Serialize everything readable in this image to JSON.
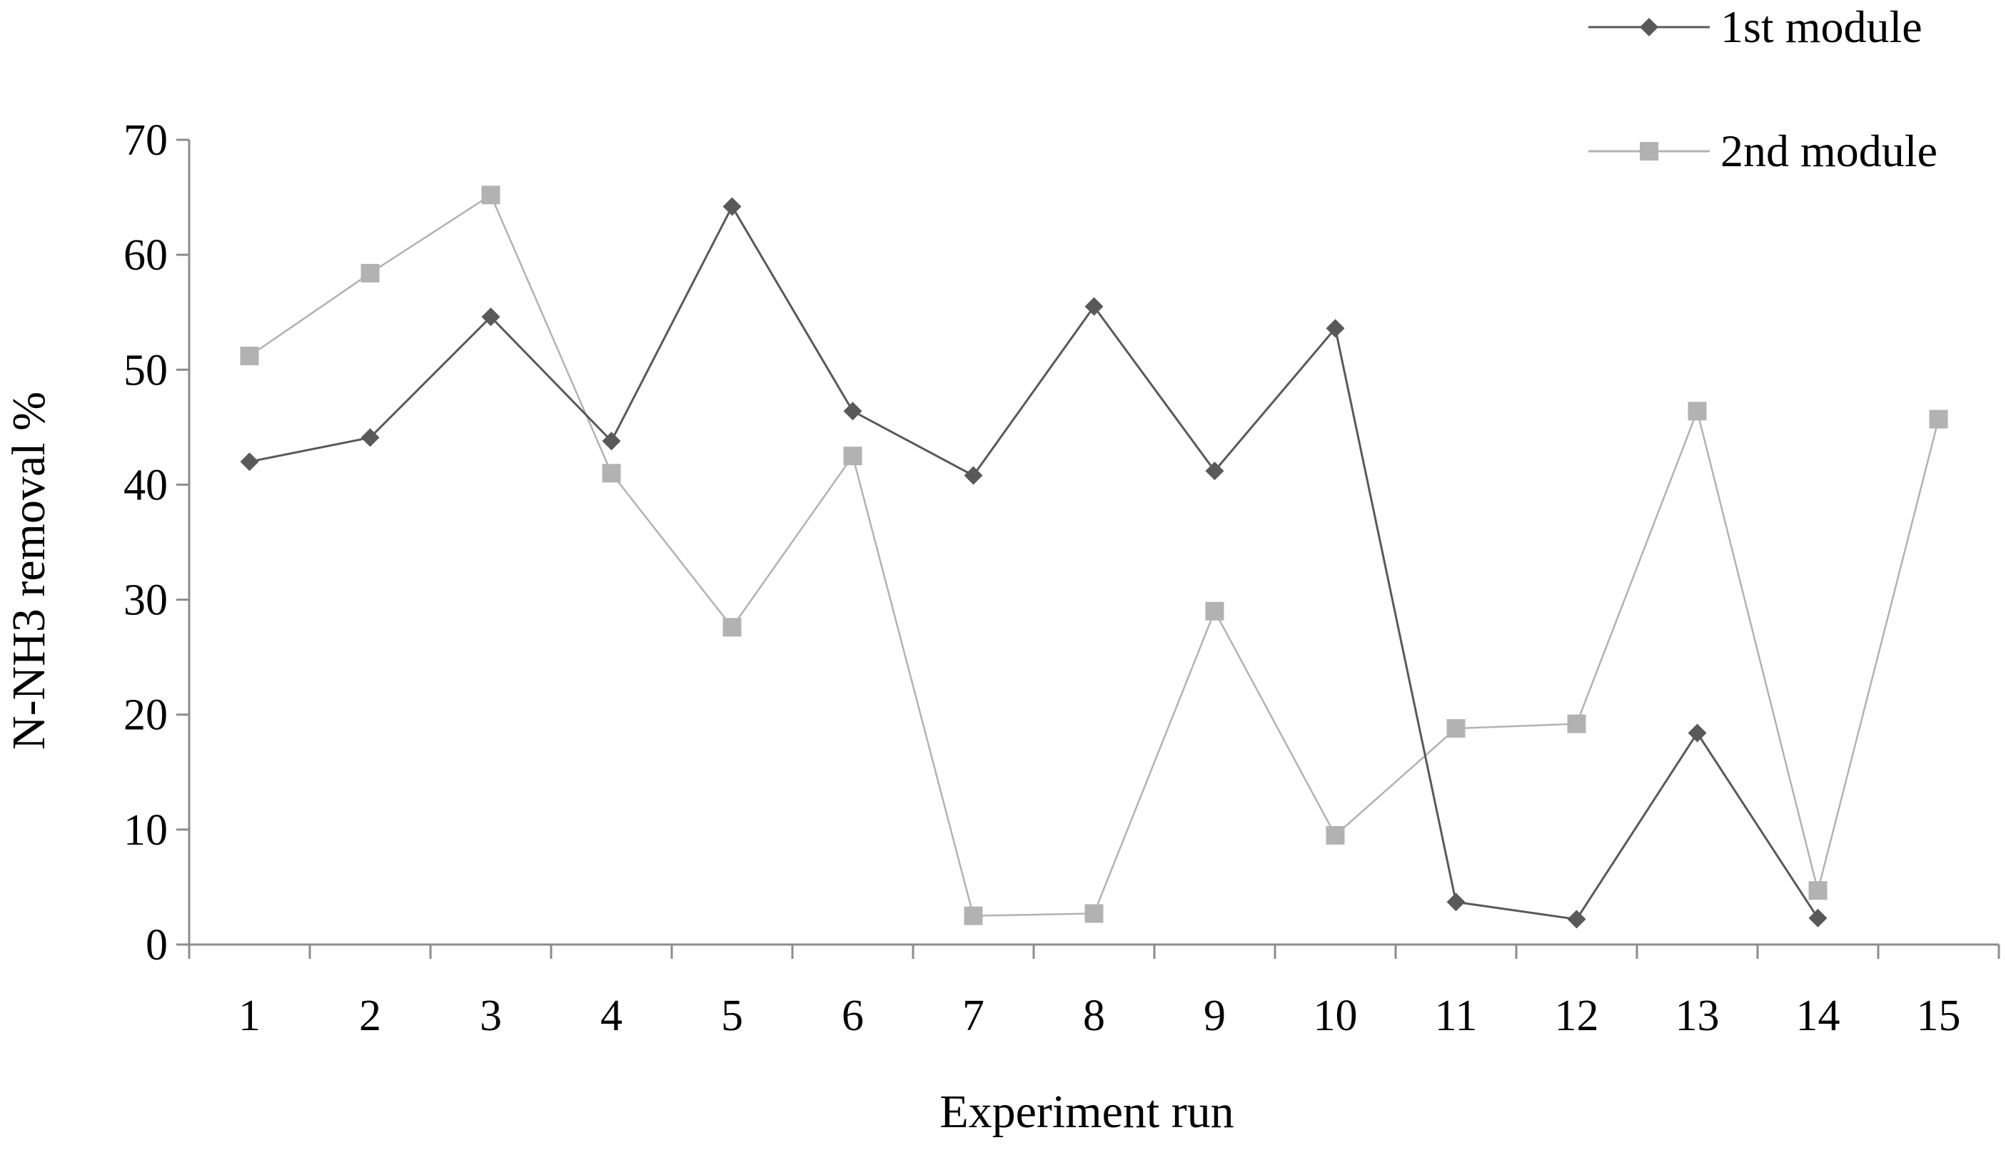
{
  "chart_data": {
    "type": "line",
    "title": "",
    "xlabel": "Experiment run",
    "ylabel": "N-NH3 removal %",
    "categories": [
      "1",
      "2",
      "3",
      "4",
      "5",
      "6",
      "7",
      "8",
      "9",
      "10",
      "11",
      "12",
      "13",
      "14",
      "15"
    ],
    "ylim": [
      0,
      70
    ],
    "yticks": [
      0,
      10,
      20,
      30,
      40,
      50,
      60,
      70
    ],
    "grid": false,
    "legend_position": "top-right",
    "series": [
      {
        "name": "1st module",
        "marker": "diamond",
        "color": "#595959",
        "values": [
          42.0,
          44.1,
          54.6,
          43.8,
          64.2,
          46.4,
          40.8,
          55.5,
          41.2,
          53.6,
          3.7,
          2.2,
          18.4,
          2.3,
          null
        ]
      },
      {
        "name": "2nd module",
        "marker": "square",
        "color": "#b2b2b2",
        "values": [
          51.2,
          58.4,
          65.2,
          41.0,
          27.6,
          42.5,
          2.5,
          2.7,
          29.0,
          9.5,
          18.8,
          19.2,
          46.4,
          4.7,
          45.7
        ]
      }
    ]
  }
}
